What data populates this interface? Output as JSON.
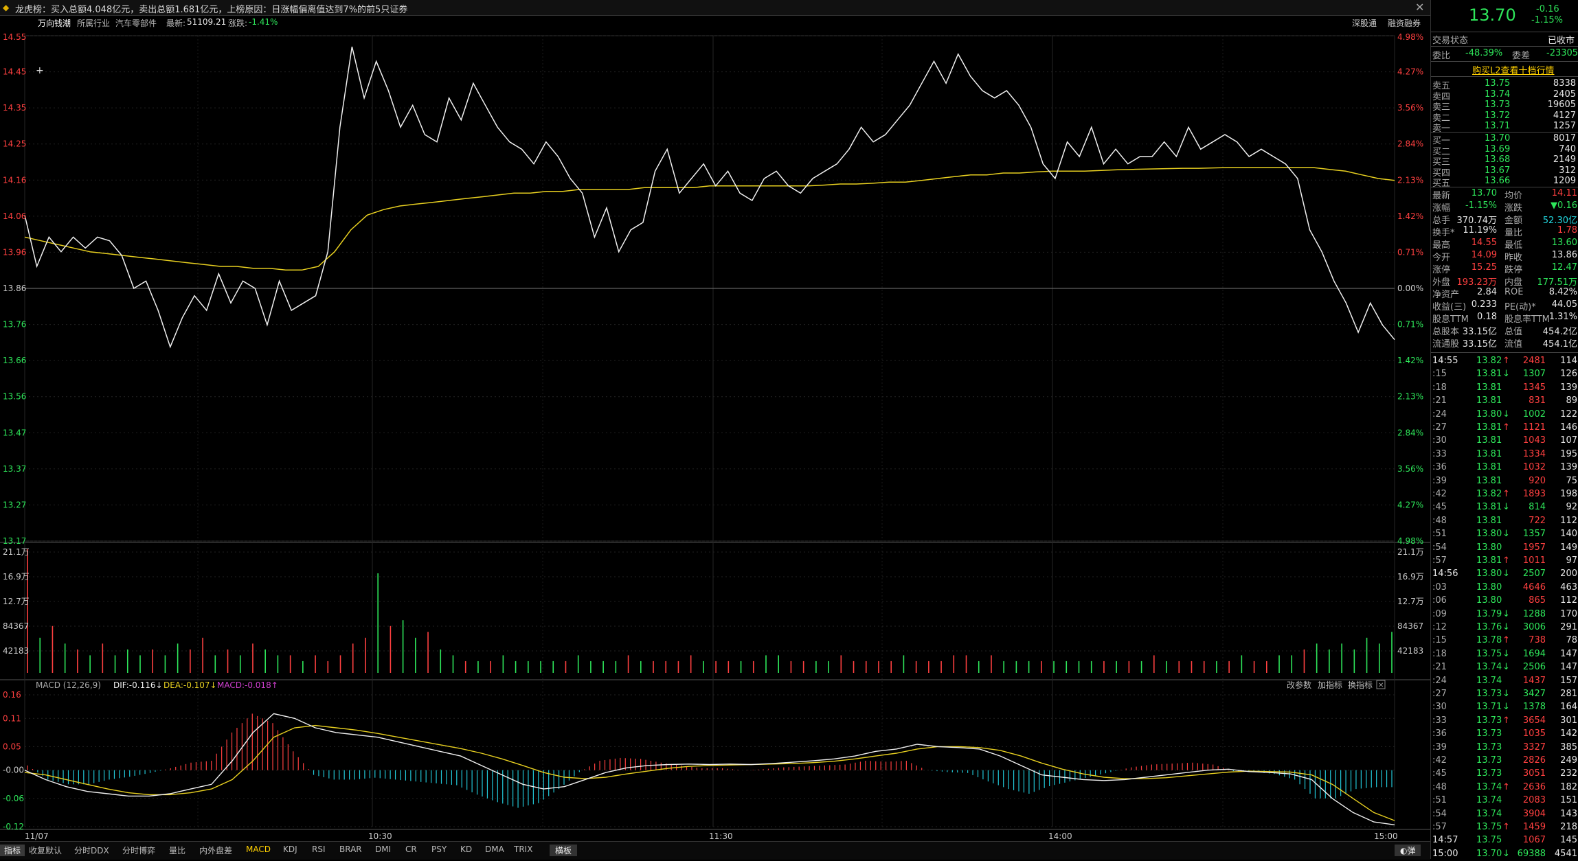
{
  "window": {
    "title_text": "龙虎榜：买入总额4.048亿元，卖出总额1.681亿元，上榜原因：日涨幅偏离值达到7%的前5只证券",
    "close_symbol": "✕"
  },
  "infobar": {
    "stock_name": "万向钱潮",
    "industry_label": "所属行业",
    "industry_value": "汽车零部件",
    "latest_label": "最新:",
    "latest_value": "51109.21",
    "change_label": "涨跌:",
    "change_value": "-1.41%",
    "link1": "深股通",
    "link2": "融资融券"
  },
  "chart_data": {
    "type": "line",
    "price_axis": {
      "labels": [
        "14.55",
        "14.45",
        "14.35",
        "14.25",
        "14.16",
        "14.06",
        "13.96",
        "13.86",
        "13.76",
        "13.66",
        "13.56",
        "13.47",
        "13.37",
        "13.27",
        "13.17"
      ],
      "pct_labels": [
        "4.98%",
        "4.27%",
        "3.56%",
        "2.84%",
        "2.13%",
        "1.42%",
        "0.71%",
        "0.00%",
        "0.71%",
        "1.42%",
        "2.13%",
        "2.84%",
        "3.56%",
        "4.27%",
        "4.98%"
      ],
      "ylim": [
        13.17,
        14.55
      ],
      "prev_close": 13.86
    },
    "time_labels": [
      "11/07",
      "10:30",
      "11:30",
      "14:00",
      "15:00"
    ],
    "price_series": [
      14.06,
      13.92,
      14.0,
      13.96,
      14.0,
      13.97,
      14.0,
      13.99,
      13.95,
      13.86,
      13.88,
      13.8,
      13.7,
      13.78,
      13.84,
      13.8,
      13.9,
      13.82,
      13.88,
      13.86,
      13.76,
      13.88,
      13.8,
      13.82,
      13.84,
      13.96,
      14.3,
      14.52,
      14.38,
      14.48,
      14.4,
      14.3,
      14.36,
      14.28,
      14.26,
      14.38,
      14.32,
      14.42,
      14.36,
      14.3,
      14.26,
      14.24,
      14.2,
      14.26,
      14.22,
      14.16,
      14.12,
      14.0,
      14.08,
      13.96,
      14.02,
      14.04,
      14.18,
      14.24,
      14.12,
      14.16,
      14.2,
      14.14,
      14.18,
      14.12,
      14.1,
      14.16,
      14.18,
      14.14,
      14.12,
      14.16,
      14.18,
      14.2,
      14.24,
      14.3,
      14.26,
      14.28,
      14.32,
      14.36,
      14.42,
      14.48,
      14.42,
      14.5,
      14.44,
      14.4,
      14.38,
      14.4,
      14.36,
      14.3,
      14.2,
      14.16,
      14.26,
      14.22,
      14.3,
      14.2,
      14.24,
      14.2,
      14.22,
      14.22,
      14.26,
      14.22,
      14.3,
      14.24,
      14.26,
      14.28,
      14.26,
      14.22,
      14.24,
      14.22,
      14.2,
      14.16,
      14.02,
      13.96,
      13.88,
      13.82,
      13.74,
      13.82,
      13.76,
      13.72
    ],
    "avg_series": [
      14.0,
      13.99,
      13.98,
      13.97,
      13.96,
      13.955,
      13.95,
      13.945,
      13.94,
      13.935,
      13.93,
      13.925,
      13.92,
      13.92,
      13.915,
      13.915,
      13.91,
      13.91,
      13.92,
      13.96,
      14.02,
      14.06,
      14.075,
      14.085,
      14.09,
      14.095,
      14.1,
      14.105,
      14.11,
      14.115,
      14.12,
      14.12,
      14.125,
      14.125,
      14.13,
      14.13,
      14.13,
      14.13,
      14.135,
      14.135,
      14.135,
      14.135,
      14.14,
      14.14,
      14.14,
      14.14,
      14.14,
      14.14,
      14.14,
      14.142,
      14.145,
      14.145,
      14.147,
      14.15,
      14.15,
      14.155,
      14.16,
      14.165,
      14.17,
      14.17,
      14.175,
      14.175,
      14.178,
      14.18,
      14.18,
      14.18,
      14.182,
      14.184,
      14.185,
      14.186,
      14.187,
      14.188,
      14.188,
      14.189,
      14.19,
      14.19,
      14.19,
      14.19,
      14.19,
      14.19,
      14.185,
      14.18,
      14.17,
      14.16,
      14.155
    ],
    "volume_axis": {
      "labels": [
        "21.1万",
        "16.9万",
        "12.7万",
        "84367",
        "42183"
      ]
    },
    "volume_values": [
      21.1,
      6,
      8,
      5,
      4,
      3,
      5,
      3,
      4,
      3,
      4,
      3,
      5,
      4,
      6,
      3,
      4,
      3,
      5,
      4,
      3,
      3,
      2,
      3,
      2,
      3,
      5,
      6,
      17,
      8,
      9,
      6,
      7,
      4,
      3,
      2,
      2,
      2,
      3,
      2,
      2,
      2,
      2,
      2,
      3,
      2,
      2,
      2,
      3,
      2,
      2,
      2,
      2,
      3,
      2,
      2,
      2,
      2,
      2,
      3,
      3,
      2,
      2,
      2,
      2,
      3,
      2,
      2,
      2,
      2,
      3,
      2,
      2,
      2,
      3,
      3,
      2,
      3,
      2,
      2,
      2,
      2,
      2,
      2,
      2,
      2,
      2,
      2,
      2,
      2,
      3,
      2,
      2,
      2,
      2,
      2,
      2,
      3,
      2,
      2,
      3,
      3,
      4,
      5,
      4,
      5,
      4,
      6,
      5,
      7
    ],
    "macd_header": {
      "name": "MACD (12,26,9)",
      "dif": "DIF:-0.116↓",
      "dea": "DEA:-0.107↓",
      "macd": "MACD:-0.018↑",
      "btn1": "改参数",
      "btn2": "加指标",
      "btn3": "换指标"
    },
    "macd_axis": {
      "labels": [
        "0.16",
        "0.11",
        "0.05",
        "-0.00",
        "-0.06",
        "-0.12"
      ],
      "ylim": [
        -0.12,
        0.16
      ]
    },
    "macd_dif": [
      0.0,
      -0.02,
      -0.035,
      -0.045,
      -0.05,
      -0.055,
      -0.055,
      -0.05,
      -0.04,
      -0.03,
      0.02,
      0.08,
      0.12,
      0.11,
      0.09,
      0.08,
      0.075,
      0.07,
      0.06,
      0.05,
      0.04,
      0.03,
      0.01,
      -0.01,
      -0.03,
      -0.04,
      -0.035,
      -0.02,
      -0.005,
      0.005,
      0.01,
      0.012,
      0.013,
      0.012,
      0.013,
      0.012,
      0.014,
      0.017,
      0.02,
      0.024,
      0.03,
      0.04,
      0.045,
      0.055,
      0.05,
      0.048,
      0.045,
      0.03,
      0.01,
      -0.01,
      -0.015,
      -0.02,
      -0.022,
      -0.02,
      -0.015,
      -0.01,
      -0.005,
      0.0,
      0.002,
      -0.003,
      -0.005,
      -0.008,
      -0.02,
      -0.06,
      -0.09,
      -0.11,
      -0.116
    ],
    "macd_dea": [
      -0.005,
      -0.01,
      -0.02,
      -0.03,
      -0.04,
      -0.048,
      -0.052,
      -0.052,
      -0.048,
      -0.04,
      -0.02,
      0.02,
      0.07,
      0.09,
      0.095,
      0.09,
      0.085,
      0.078,
      0.07,
      0.062,
      0.054,
      0.046,
      0.036,
      0.024,
      0.01,
      -0.005,
      -0.015,
      -0.018,
      -0.015,
      -0.008,
      -0.002,
      0.004,
      0.008,
      0.01,
      0.011,
      0.012,
      0.013,
      0.014,
      0.016,
      0.019,
      0.024,
      0.03,
      0.036,
      0.045,
      0.05,
      0.05,
      0.048,
      0.042,
      0.03,
      0.015,
      0.002,
      -0.008,
      -0.015,
      -0.018,
      -0.018,
      -0.016,
      -0.012,
      -0.008,
      -0.004,
      -0.002,
      -0.003,
      -0.004,
      -0.01,
      -0.03,
      -0.06,
      -0.09,
      -0.107
    ],
    "macd_hist": [
      0.005,
      -0.01,
      -0.015,
      -0.015,
      -0.01,
      -0.007,
      -0.003,
      0.002,
      0.008,
      0.01,
      0.04,
      0.06,
      0.05,
      0.02,
      -0.005,
      -0.01,
      -0.01,
      -0.008,
      -0.01,
      -0.012,
      -0.014,
      -0.016,
      -0.026,
      -0.034,
      -0.04,
      -0.035,
      -0.02,
      -0.002,
      0.01,
      0.013,
      0.012,
      0.008,
      0.005,
      0.002,
      0.002,
      0.0,
      0.001,
      0.003,
      0.004,
      0.005,
      0.006,
      0.01,
      0.009,
      0.01,
      0.0,
      -0.002,
      -0.003,
      -0.012,
      -0.02,
      -0.025,
      -0.017,
      -0.012,
      -0.007,
      -0.002,
      0.003,
      0.006,
      0.007,
      0.008,
      0.006,
      -0.001,
      -0.002,
      -0.004,
      -0.01,
      -0.03,
      -0.03,
      -0.02,
      -0.018
    ]
  },
  "bottom_tabs": [
    "指标",
    "收复默认",
    "分时DDX",
    "分时博弈",
    "量比",
    "内外盘差",
    "MACD",
    "KDJ",
    "RSI",
    "BRAR",
    "DMI",
    "CR",
    "PSY",
    "KD",
    "DMA",
    "TRIX",
    "横板"
  ],
  "bottom_right": "◐弹",
  "quote": {
    "price": "13.70",
    "change": "-0.16",
    "change_pct": "-1.15%",
    "status_label": "交易状态",
    "status_value": "已收市",
    "ratio_label": "委比",
    "ratio_value": "-48.39%",
    "diff_label": "委差",
    "diff_value": "-23305",
    "l2_link": "购买L2查看十档行情",
    "asks": [
      {
        "label": "卖五",
        "price": "13.75",
        "vol": "8338"
      },
      {
        "label": "卖四",
        "price": "13.74",
        "vol": "2405"
      },
      {
        "label": "卖三",
        "price": "13.73",
        "vol": "19605"
      },
      {
        "label": "卖二",
        "price": "13.72",
        "vol": "4127"
      },
      {
        "label": "卖一",
        "price": "13.71",
        "vol": "1257"
      }
    ],
    "bids": [
      {
        "label": "买一",
        "price": "13.70",
        "vol": "8017"
      },
      {
        "label": "买二",
        "price": "13.69",
        "vol": "740"
      },
      {
        "label": "买三",
        "price": "13.68",
        "vol": "2149"
      },
      {
        "label": "买四",
        "price": "13.67",
        "vol": "312"
      },
      {
        "label": "买五",
        "price": "13.66",
        "vol": "1209"
      }
    ],
    "stats": [
      {
        "l1": "最新",
        "v1": "13.70",
        "c1": "grn",
        "l2": "均价",
        "v2": "14.11",
        "c2": "red"
      },
      {
        "l1": "涨幅",
        "v1": "-1.15%",
        "c1": "grn",
        "l2": "涨跌",
        "v2": "▼0.16",
        "c2": "grn"
      },
      {
        "l1": "总手",
        "v1": "370.74万",
        "c1": "wht",
        "l2": "金额",
        "v2": "52.30亿",
        "c2": "cyn"
      },
      {
        "l1": "换手*",
        "v1": "11.19%",
        "c1": "wht",
        "l2": "量比",
        "v2": "1.78",
        "c2": "red"
      },
      {
        "l1": "最高",
        "v1": "14.55",
        "c1": "red",
        "l2": "最低",
        "v2": "13.60",
        "c2": "grn"
      },
      {
        "l1": "今开",
        "v1": "14.09",
        "c1": "red",
        "l2": "昨收",
        "v2": "13.86",
        "c2": "wht"
      },
      {
        "l1": "涨停",
        "v1": "15.25",
        "c1": "red",
        "l2": "跌停",
        "v2": "12.47",
        "c2": "grn"
      },
      {
        "l1": "外盘",
        "v1": "193.23万",
        "c1": "red",
        "l2": "内盘",
        "v2": "177.51万",
        "c2": "grn"
      },
      {
        "l1": "净资产",
        "v1": "2.84",
        "c1": "wht",
        "l2": "ROE",
        "v2": "8.42%",
        "c2": "wht"
      },
      {
        "l1": "收益(三)",
        "v1": "0.233",
        "c1": "wht",
        "l2": "PE(动)*",
        "v2": "44.05",
        "c2": "wht"
      },
      {
        "l1": "股息TTM",
        "v1": "0.18",
        "c1": "wht",
        "l2": "股息率TTM",
        "v2": "1.31%",
        "c2": "wht"
      },
      {
        "l1": "总股本",
        "v1": "33.15亿",
        "c1": "wht",
        "l2": "总值",
        "v2": "454.2亿",
        "c2": "wht"
      },
      {
        "l1": "流通股",
        "v1": "33.15亿",
        "c1": "wht",
        "l2": "流值",
        "v2": "454.1亿",
        "c2": "wht"
      }
    ],
    "ticks": [
      {
        "t": "14:55",
        "p": "13.82",
        "d": "up",
        "v": "2481",
        "n": "114"
      },
      {
        "t": ":15",
        "p": "13.81",
        "d": "down",
        "v": "1307",
        "n": "126"
      },
      {
        "t": ":18",
        "p": "13.81",
        "d": "",
        "v": "1345",
        "n": "139"
      },
      {
        "t": ":21",
        "p": "13.81",
        "d": "",
        "v": "831",
        "n": "89"
      },
      {
        "t": ":24",
        "p": "13.80",
        "d": "down",
        "v": "1002",
        "n": "122"
      },
      {
        "t": ":27",
        "p": "13.81",
        "d": "up",
        "v": "1121",
        "n": "146"
      },
      {
        "t": ":30",
        "p": "13.81",
        "d": "",
        "v": "1043",
        "n": "107"
      },
      {
        "t": ":33",
        "p": "13.81",
        "d": "",
        "v": "1334",
        "n": "195"
      },
      {
        "t": ":36",
        "p": "13.81",
        "d": "",
        "v": "1032",
        "n": "139"
      },
      {
        "t": ":39",
        "p": "13.81",
        "d": "",
        "v": "920",
        "n": "75"
      },
      {
        "t": ":42",
        "p": "13.82",
        "d": "up",
        "v": "1893",
        "n": "198"
      },
      {
        "t": ":45",
        "p": "13.81",
        "d": "down",
        "v": "814",
        "n": "92"
      },
      {
        "t": ":48",
        "p": "13.81",
        "d": "",
        "v": "722",
        "n": "112"
      },
      {
        "t": ":51",
        "p": "13.80",
        "d": "down",
        "v": "1357",
        "n": "140"
      },
      {
        "t": ":54",
        "p": "13.80",
        "d": "",
        "v": "1957",
        "n": "149"
      },
      {
        "t": ":57",
        "p": "13.81",
        "d": "up",
        "v": "1011",
        "n": "97"
      },
      {
        "t": "14:56",
        "p": "13.80",
        "d": "down",
        "v": "2507",
        "n": "200"
      },
      {
        "t": ":03",
        "p": "13.80",
        "d": "",
        "v": "4646",
        "n": "463"
      },
      {
        "t": ":06",
        "p": "13.80",
        "d": "",
        "v": "865",
        "n": "112"
      },
      {
        "t": ":09",
        "p": "13.79",
        "d": "down",
        "v": "1288",
        "n": "170"
      },
      {
        "t": ":12",
        "p": "13.76",
        "d": "down",
        "v": "3006",
        "n": "291"
      },
      {
        "t": ":15",
        "p": "13.78",
        "d": "up",
        "v": "738",
        "n": "78"
      },
      {
        "t": ":18",
        "p": "13.75",
        "d": "down",
        "v": "1694",
        "n": "147"
      },
      {
        "t": ":21",
        "p": "13.74",
        "d": "down",
        "v": "2506",
        "n": "147"
      },
      {
        "t": ":24",
        "p": "13.74",
        "d": "",
        "v": "1437",
        "n": "157"
      },
      {
        "t": ":27",
        "p": "13.73",
        "d": "down",
        "v": "3427",
        "n": "281"
      },
      {
        "t": ":30",
        "p": "13.71",
        "d": "down",
        "v": "1378",
        "n": "164"
      },
      {
        "t": ":33",
        "p": "13.73",
        "d": "up",
        "v": "3654",
        "n": "301"
      },
      {
        "t": ":36",
        "p": "13.73",
        "d": "",
        "v": "1035",
        "n": "142"
      },
      {
        "t": ":39",
        "p": "13.73",
        "d": "",
        "v": "3327",
        "n": "385"
      },
      {
        "t": ":42",
        "p": "13.73",
        "d": "",
        "v": "2826",
        "n": "249"
      },
      {
        "t": ":45",
        "p": "13.73",
        "d": "",
        "v": "3051",
        "n": "232"
      },
      {
        "t": ":48",
        "p": "13.74",
        "d": "up",
        "v": "2636",
        "n": "182"
      },
      {
        "t": ":51",
        "p": "13.74",
        "d": "",
        "v": "2083",
        "n": "151"
      },
      {
        "t": ":54",
        "p": "13.74",
        "d": "",
        "v": "3904",
        "n": "143"
      },
      {
        "t": ":57",
        "p": "13.75",
        "d": "up",
        "v": "1459",
        "n": "218"
      },
      {
        "t": "14:57",
        "p": "13.75",
        "d": "",
        "v": "1067",
        "n": "145"
      },
      {
        "t": "15:00",
        "p": "13.70",
        "d": "down",
        "v": "69388",
        "n": "4541"
      }
    ]
  }
}
